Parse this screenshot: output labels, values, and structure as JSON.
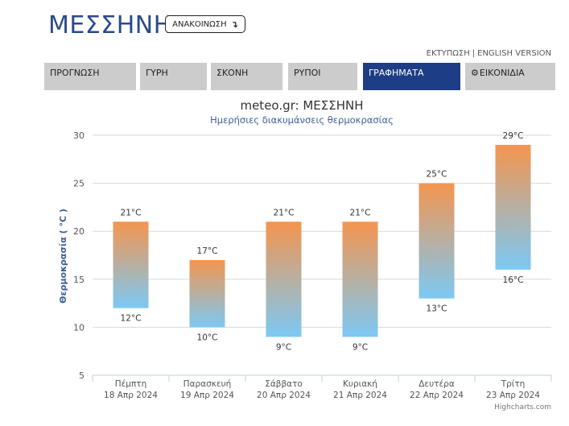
{
  "header": {
    "title": "ΜΕΣΣΗΝΗ",
    "announce_label": "ΑΝΑΚΟΙΝΩΣΗ",
    "announce_arrow": "↴"
  },
  "top_links": {
    "print": "ΕΚΤΥΠΩΣΗ",
    "separator": "|",
    "english": "ENGLISH VERSION"
  },
  "tabs": [
    {
      "label": "ΠΡΟΓΝΩΣΗ",
      "active": false
    },
    {
      "label": "ΓΥΡΗ",
      "active": false
    },
    {
      "label": "ΣΚΟΝΗ",
      "active": false
    },
    {
      "label": "ΡΥΠΟΙ",
      "active": false
    },
    {
      "label": "ΓΡΑΦΗΜΑΤΑ",
      "active": true
    },
    {
      "label": "ΕΙΚΟΝΙΔΙΑ",
      "active": false,
      "icon": "gear-icon"
    }
  ],
  "chart_data": {
    "type": "columnrange",
    "title": "meteo.gr: ΜΕΣΣΗΝΗ",
    "subtitle": "Ημερήσιες διακυμάνσεις θερμοκρασίας",
    "ylabel": "Θερμοκρασία ( °C )",
    "ylim": [
      5,
      30
    ],
    "yticks": [
      5,
      10,
      15,
      20,
      25,
      30
    ],
    "grid": true,
    "unit": "°C",
    "categories": [
      {
        "day": "Πέμπτη",
        "date": "18 Απρ 2024"
      },
      {
        "day": "Παρασκευή",
        "date": "19 Απρ 2024"
      },
      {
        "day": "Σάββατο",
        "date": "20 Απρ 2024"
      },
      {
        "day": "Κυριακή",
        "date": "21 Απρ 2024"
      },
      {
        "day": "Δευτέρα",
        "date": "22 Απρ 2024"
      },
      {
        "day": "Τρίτη",
        "date": "23 Απρ 2024"
      }
    ],
    "low": [
      12,
      10,
      9,
      9,
      13,
      16
    ],
    "high": [
      21,
      17,
      21,
      21,
      25,
      29
    ],
    "colors": {
      "high": "#f4954f",
      "low": "#7cc9f4"
    },
    "credit": "Highcharts.com"
  }
}
